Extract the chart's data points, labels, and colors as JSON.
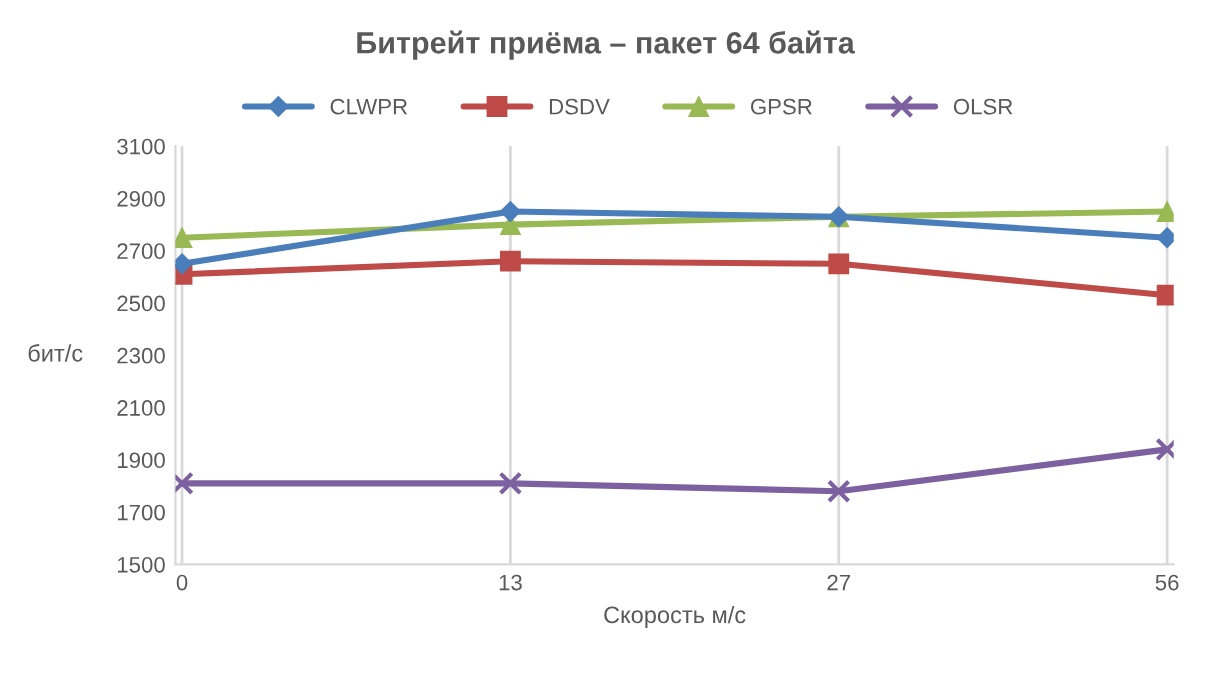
{
  "chart_data": {
    "type": "line",
    "title": "Битрейт приёма – пакет 64 байта",
    "xlabel": "Скорость м/с",
    "ylabel": "бит/с",
    "categories": [
      "0",
      "13",
      "27",
      "56"
    ],
    "series": [
      {
        "name": "CLWPR",
        "color": "#4a7ebb",
        "marker": "diamond",
        "values": [
          2650,
          2850,
          2830,
          2750
        ]
      },
      {
        "name": "DSDV",
        "color": "#be4b48",
        "marker": "square",
        "values": [
          2610,
          2660,
          2650,
          2530
        ]
      },
      {
        "name": "GPSR",
        "color": "#98b954",
        "marker": "triangle",
        "values": [
          2750,
          2800,
          2830,
          2850
        ]
      },
      {
        "name": "OLSR",
        "color": "#7d60a0",
        "marker": "cross",
        "values": [
          1810,
          1810,
          1780,
          1940
        ]
      }
    ],
    "ylim": [
      1500,
      3100
    ],
    "yticks": [
      1500,
      1700,
      1900,
      2100,
      2300,
      2500,
      2700,
      2900,
      3100
    ],
    "grid": "x",
    "legend": "top"
  }
}
